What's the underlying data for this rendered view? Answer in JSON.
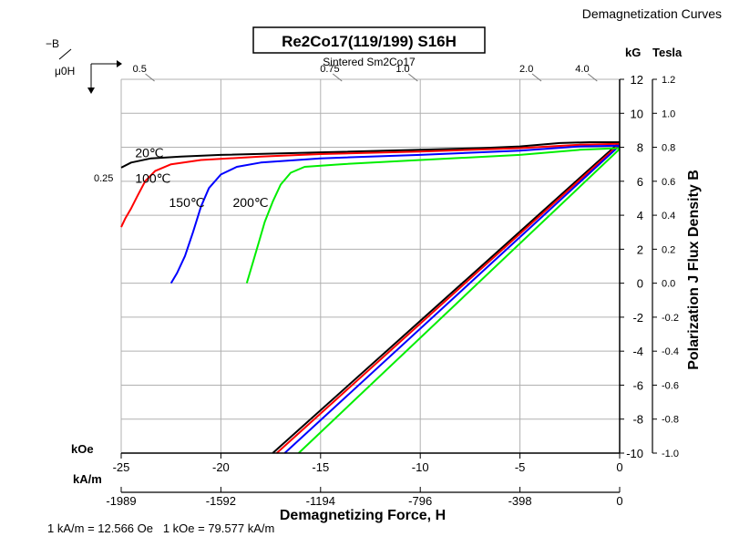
{
  "chart_data": {
    "type": "line",
    "header": "Demagnetization Curves",
    "title": "Re2Co17(119/199) S16H",
    "subtitle": "Sintered Sm2Co17",
    "xlabel": "Demagnetizing Force, H",
    "ylabel": "Polarization J Flux Density B",
    "x_unit_top": "kOe",
    "x_unit_bottom": "kA/m",
    "y_unit_left": "kG",
    "y_unit_right": "Tesla",
    "corner_label_top": "−B",
    "corner_label_bottom": "μ0H",
    "xlim": [
      -25,
      0
    ],
    "ylim": [
      -10,
      12
    ],
    "x_ticks": [
      -25,
      -20,
      -15,
      -10,
      -5,
      0
    ],
    "x_tick_labels": [
      "-25",
      "-20",
      "-15",
      "-10",
      "-5",
      "0"
    ],
    "x_ticks_kAm": [
      -25,
      -20,
      -15,
      -10,
      -5,
      0
    ],
    "x_tick_labels_kAm": [
      "-1989",
      "-1592",
      "-1194",
      "-796",
      "-398",
      "0"
    ],
    "y_ticks": [
      -10,
      -8,
      -6,
      -4,
      -2,
      0,
      2,
      4,
      6,
      8,
      10,
      12
    ],
    "y_tick_labels": [
      "-10",
      "-8",
      "-6",
      "-4",
      "-2",
      "0",
      "2",
      "4",
      "6",
      "8",
      "10",
      "12"
    ],
    "y_tick_labels_tesla": [
      "-1.0",
      "-0.8",
      "-0.6",
      "-0.4",
      "-0.2",
      "0.0",
      "0.2",
      "0.4",
      "0.6",
      "0.8",
      "1.0",
      "1.2"
    ],
    "permeance_lines": [
      {
        "label": "0.25",
        "x": -25,
        "y": 6.2
      },
      {
        "label": "0.5",
        "x": -24.7,
        "y": 12
      },
      {
        "label": "0.75",
        "x": -15.3,
        "y": 12
      },
      {
        "label": "1.0",
        "x": -11.5,
        "y": 12
      },
      {
        "label": "2.0",
        "x": -5.3,
        "y": 12
      },
      {
        "label": "4.0",
        "x": -2.5,
        "y": 12
      }
    ],
    "grid": true,
    "footnote": "1 kA/m = 12.566 Oe   1 kOe = 79.577 kA/m",
    "series": [
      {
        "name": "20℃",
        "color": "#000000",
        "label_pos": {
          "x": -24.3,
          "y": 7.4
        },
        "j_curve": [
          [
            -25,
            6.8
          ],
          [
            -24.5,
            7.1
          ],
          [
            -23.5,
            7.35
          ],
          [
            -22,
            7.45
          ],
          [
            -20,
            7.55
          ],
          [
            -15,
            7.7
          ],
          [
            -10,
            7.85
          ],
          [
            -7,
            7.95
          ],
          [
            -5,
            8.05
          ],
          [
            -3,
            8.25
          ],
          [
            -1.5,
            8.3
          ],
          [
            0,
            8.3
          ]
        ],
        "b_line": [
          [
            -17.4,
            -10
          ],
          [
            0,
            8.3
          ]
        ]
      },
      {
        "name": "100℃",
        "color": "#ff0000",
        "label_pos": {
          "x": -24.3,
          "y": 5.9
        },
        "j_curve": [
          [
            -25,
            3.3
          ],
          [
            -24.8,
            3.8
          ],
          [
            -24.5,
            4.4
          ],
          [
            -24.2,
            5.1
          ],
          [
            -23.8,
            6.0
          ],
          [
            -23.3,
            6.6
          ],
          [
            -22.5,
            7.0
          ],
          [
            -21,
            7.25
          ],
          [
            -18,
            7.45
          ],
          [
            -15,
            7.6
          ],
          [
            -10,
            7.75
          ],
          [
            -5,
            7.95
          ],
          [
            -2,
            8.15
          ],
          [
            0,
            8.2
          ]
        ],
        "b_line": [
          [
            -17.2,
            -10
          ],
          [
            0,
            8.2
          ]
        ]
      },
      {
        "name": "150℃",
        "color": "#0000ff",
        "label_pos": {
          "x": -22.6,
          "y": 4.5
        },
        "j_curve": [
          [
            -22.5,
            0
          ],
          [
            -22.2,
            0.6
          ],
          [
            -21.8,
            1.6
          ],
          [
            -21.4,
            3.0
          ],
          [
            -21.0,
            4.5
          ],
          [
            -20.6,
            5.6
          ],
          [
            -20.0,
            6.4
          ],
          [
            -19.2,
            6.85
          ],
          [
            -18,
            7.1
          ],
          [
            -15,
            7.35
          ],
          [
            -10,
            7.55
          ],
          [
            -5,
            7.8
          ],
          [
            -2,
            8.05
          ],
          [
            0,
            8.1
          ]
        ],
        "b_line": [
          [
            -16.8,
            -10
          ],
          [
            0,
            8.1
          ]
        ]
      },
      {
        "name": "200℃",
        "color": "#00ee00",
        "label_pos": {
          "x": -19.4,
          "y": 4.5
        },
        "j_curve": [
          [
            -18.7,
            0
          ],
          [
            -18.4,
            1.2
          ],
          [
            -18.1,
            2.4
          ],
          [
            -17.8,
            3.6
          ],
          [
            -17.4,
            4.8
          ],
          [
            -17.0,
            5.8
          ],
          [
            -16.5,
            6.5
          ],
          [
            -15.8,
            6.85
          ],
          [
            -14,
            7.0
          ],
          [
            -10,
            7.25
          ],
          [
            -5,
            7.55
          ],
          [
            -2,
            7.85
          ],
          [
            0,
            7.95
          ]
        ],
        "b_line": [
          [
            -16.1,
            -10
          ],
          [
            0,
            7.9
          ]
        ]
      }
    ]
  }
}
